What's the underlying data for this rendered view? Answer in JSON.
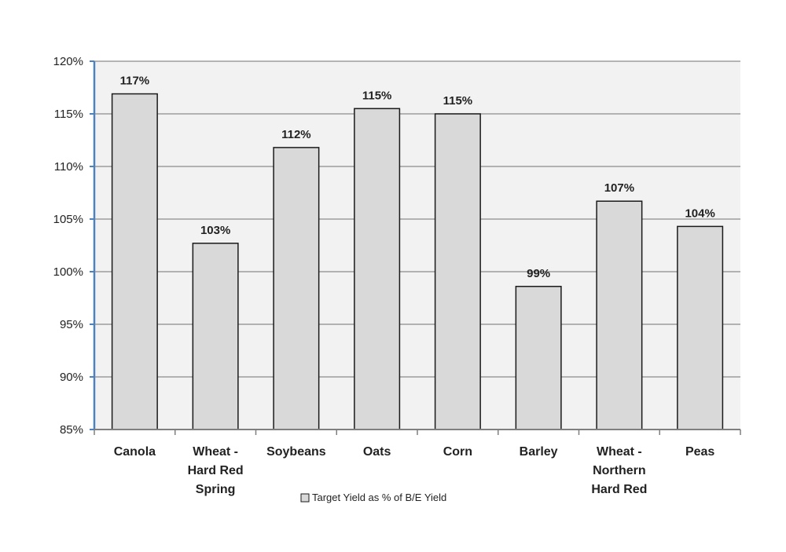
{
  "chart_data": {
    "type": "bar",
    "categories": [
      [
        "Canola"
      ],
      [
        "Wheat -",
        "Hard Red",
        "Spring"
      ],
      [
        "Soybeans"
      ],
      [
        "Oats"
      ],
      [
        "Corn"
      ],
      [
        "Barley"
      ],
      [
        "Wheat -",
        "Northern",
        "Hard Red"
      ],
      [
        "Peas"
      ]
    ],
    "series": [
      {
        "name": "Target Yield as % of B/E Yield",
        "values": [
          116.9,
          102.7,
          111.8,
          115.5,
          115.0,
          98.6,
          106.7,
          104.3
        ],
        "labels": [
          "117%",
          "103%",
          "112%",
          "115%",
          "115%",
          "99%",
          "107%",
          "104%"
        ]
      }
    ],
    "ylim": [
      85,
      120
    ],
    "yticks": [
      85,
      90,
      95,
      100,
      105,
      110,
      115,
      120
    ],
    "ytick_labels": [
      "85%",
      "90%",
      "95%",
      "100%",
      "105%",
      "110%",
      "115%",
      "120%"
    ],
    "grid": true,
    "legend": "bottom",
    "colors": {
      "bar_fill": "#d9d9d9",
      "bar_stroke": "#1a1a1a",
      "plot_bg": "#f2f2f2",
      "grid": "#8c8c8c",
      "axis": "#4f81bd"
    }
  }
}
